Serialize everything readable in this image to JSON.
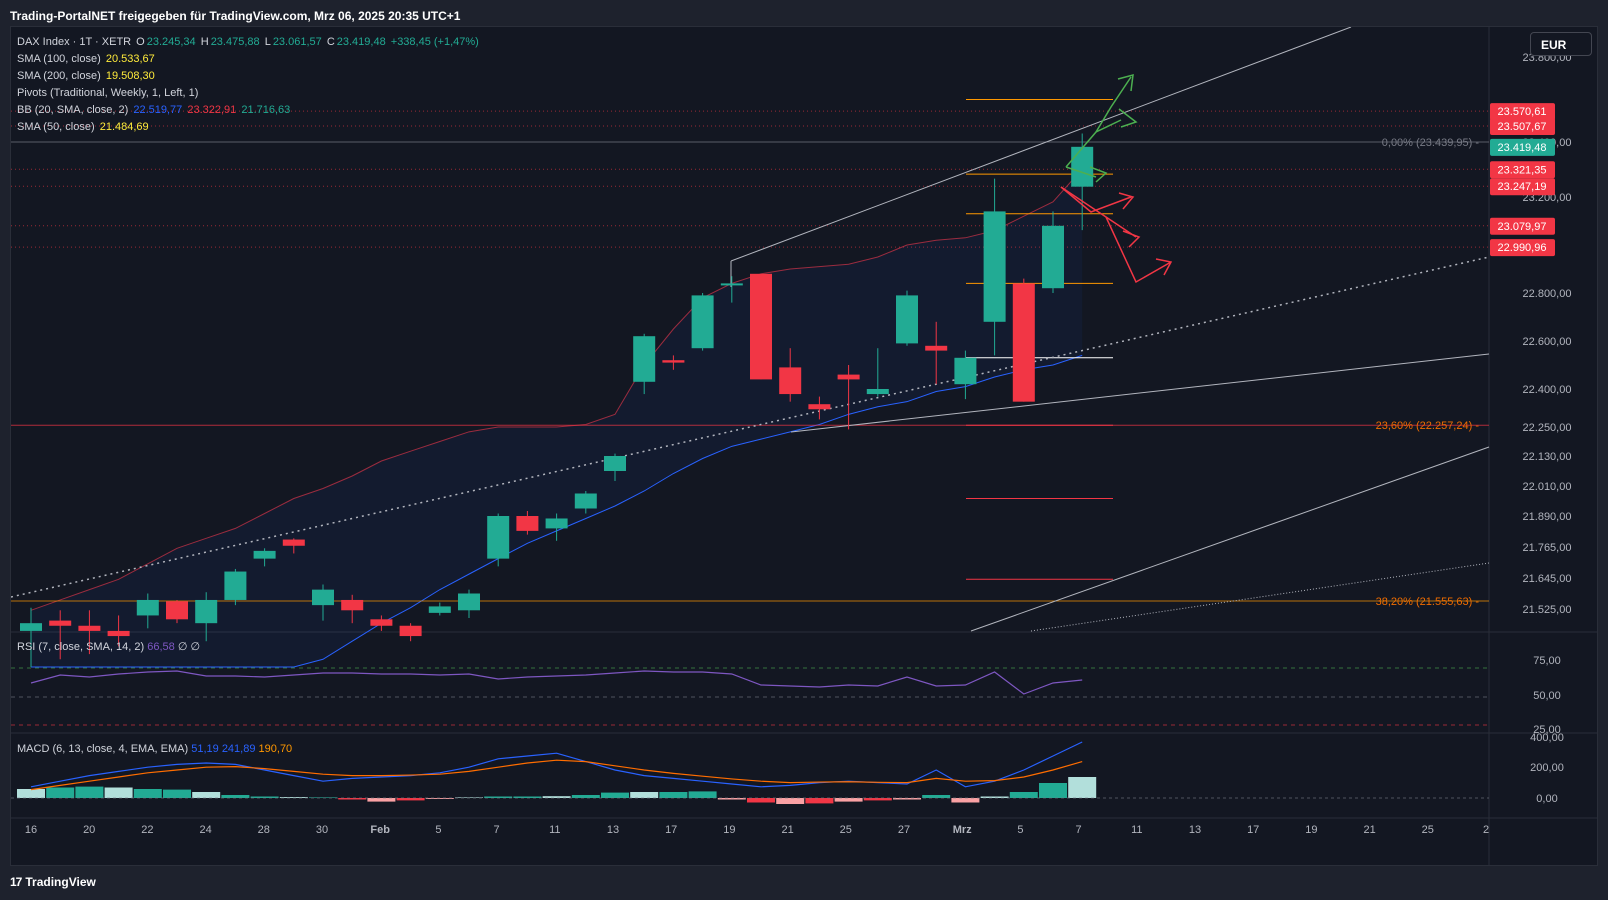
{
  "header": {
    "text": "Trading-PortalNET freigegeben für TradingView.com, Mrz 06, 2025 20:35 UTC+1"
  },
  "footer": {
    "logo": "17",
    "brand": "TradingView"
  },
  "currency_button": "EUR",
  "legend": {
    "symbol": "DAX Index · 1T · XETR",
    "o_label": "O",
    "o": "23.245,34",
    "h_label": "H",
    "h": "23.475,88",
    "l_label": "L",
    "l": "23.061,57",
    "c_label": "C",
    "c": "23.419,48",
    "chg": "+338,45 (+1,47%)",
    "sma100_label": "SMA (100, close)",
    "sma100": "20.533,67",
    "sma200_label": "SMA (200, close)",
    "sma200": "19.508,30",
    "pivots_label": "Pivots (Traditional, Weekly, 1, Left, 1)",
    "bb_label": "BB (20, SMA, close, 2)",
    "bb_basis": "22.519,77",
    "bb_upper": "23.322,91",
    "bb_lower": "21.716,63",
    "sma50_label": "SMA (50, close)",
    "sma50": "21.484,69"
  },
  "rsi_legend": {
    "label": "RSI (7, close, SMA, 14, 2)",
    "value": "66,58",
    "extra": "∅ ∅"
  },
  "macd_legend": {
    "label": "MACD (6, 13, close, 4, EMA, EMA)",
    "macd": "51,19",
    "signal": "241,89",
    "hist": "190,70"
  },
  "colors": {
    "up": "#22ab94",
    "down": "#f23645",
    "bg": "#131722",
    "grid": "#1e222d",
    "bb": "#9b2c3f",
    "sma50": "#2962ff",
    "macd": "#2962ff",
    "signal": "#ff6d00",
    "rsi": "#7e57c2",
    "pivot": "#ff9800",
    "fib": "#ef6c00"
  },
  "chart_data": {
    "type": "candlestick",
    "y_ticks": [
      "23.800,00",
      "23.400,00",
      "23.200,00",
      "22.800,00",
      "22.600,00",
      "22.400,00",
      "22.250,00",
      "22.130,00",
      "22.010,00",
      "21.890,00",
      "21.765,00",
      "21.645,00",
      "21.525,00"
    ],
    "x_ticks": [
      "16",
      "20",
      "22",
      "24",
      "28",
      "30",
      "Feb",
      "5",
      "7",
      "11",
      "13",
      "17",
      "19",
      "21",
      "25",
      "27",
      "Mrz",
      "5",
      "7",
      "11",
      "13",
      "17",
      "19",
      "21",
      "25",
      "2"
    ],
    "candles": [
      {
        "o": 21440,
        "h": 21530,
        "l": 21300,
        "c": 21470
      },
      {
        "o": 21480,
        "h": 21520,
        "l": 21330,
        "c": 21460
      },
      {
        "o": 21460,
        "h": 21520,
        "l": 21350,
        "c": 21440
      },
      {
        "o": 21440,
        "h": 21500,
        "l": 21380,
        "c": 21420
      },
      {
        "o": 21500,
        "h": 21585,
        "l": 21450,
        "c": 21560
      },
      {
        "o": 21555,
        "h": 21560,
        "l": 21470,
        "c": 21485
      },
      {
        "o": 21470,
        "h": 21590,
        "l": 21400,
        "c": 21560
      },
      {
        "o": 21560,
        "h": 21680,
        "l": 21540,
        "c": 21670
      },
      {
        "o": 21720,
        "h": 21760,
        "l": 21690,
        "c": 21750
      },
      {
        "o": 21795,
        "h": 21800,
        "l": 21740,
        "c": 21770
      },
      {
        "o": 21540,
        "h": 21620,
        "l": 21480,
        "c": 21600
      },
      {
        "o": 21560,
        "h": 21580,
        "l": 21470,
        "c": 21520
      },
      {
        "o": 21485,
        "h": 21500,
        "l": 21440,
        "c": 21460
      },
      {
        "o": 21460,
        "h": 21470,
        "l": 21400,
        "c": 21420
      },
      {
        "o": 21510,
        "h": 21550,
        "l": 21500,
        "c": 21535
      },
      {
        "o": 21520,
        "h": 21600,
        "l": 21490,
        "c": 21585
      },
      {
        "o": 21720,
        "h": 21900,
        "l": 21690,
        "c": 21890
      },
      {
        "o": 21890,
        "h": 21910,
        "l": 21815,
        "c": 21830
      },
      {
        "o": 21840,
        "h": 21900,
        "l": 21790,
        "c": 21880
      },
      {
        "o": 21920,
        "h": 21990,
        "l": 21900,
        "c": 21980
      },
      {
        "o": 22070,
        "h": 22140,
        "l": 22030,
        "c": 22130
      },
      {
        "o": 22430,
        "h": 22630,
        "l": 22380,
        "c": 22620
      },
      {
        "o": 22520,
        "h": 22540,
        "l": 22480,
        "c": 22510
      },
      {
        "o": 22570,
        "h": 22800,
        "l": 22560,
        "c": 22790
      },
      {
        "o": 22840,
        "h": 22870,
        "l": 22760,
        "c": 22840
      },
      {
        "o": 22880,
        "h": 22880,
        "l": 22440,
        "c": 22440
      },
      {
        "o": 22490,
        "h": 22570,
        "l": 22350,
        "c": 22380
      },
      {
        "o": 22340,
        "h": 22370,
        "l": 22280,
        "c": 22320
      },
      {
        "o": 22460,
        "h": 22500,
        "l": 22240,
        "c": 22440
      },
      {
        "o": 22380,
        "h": 22570,
        "l": 22370,
        "c": 22400
      },
      {
        "o": 22590,
        "h": 22810,
        "l": 22580,
        "c": 22790
      },
      {
        "o": 22580,
        "h": 22680,
        "l": 22420,
        "c": 22560
      },
      {
        "o": 22420,
        "h": 22560,
        "l": 22360,
        "c": 22530
      },
      {
        "o": 22680,
        "h": 23280,
        "l": 22540,
        "c": 23140
      },
      {
        "o": 22840,
        "h": 22860,
        "l": 22350,
        "c": 22350
      },
      {
        "o": 22820,
        "h": 23140,
        "l": 22800,
        "c": 23080
      },
      {
        "o": 23245,
        "h": 23476,
        "l": 23062,
        "c": 23419
      }
    ],
    "fib_levels": [
      {
        "label": "0,00% (23.439,95)",
        "value": 23440
      },
      {
        "label": "23,60% (22.257,24)",
        "value": 22257
      },
      {
        "label": "38,20% (21.555,63)",
        "value": 21556
      }
    ],
    "price_badges": [
      {
        "text": "23.570,61",
        "value": 23571,
        "kind": "down"
      },
      {
        "text": "23.507,67",
        "value": 23508,
        "kind": "down"
      },
      {
        "text": "23.419,48",
        "value": 23419,
        "kind": "up"
      },
      {
        "text": "23.321,35",
        "value": 23321,
        "kind": "down"
      },
      {
        "text": "23.247,19",
        "value": 23247,
        "kind": "down"
      },
      {
        "text": "23.079,97",
        "value": 23080,
        "kind": "down"
      },
      {
        "text": "22.990,96",
        "value": 22991,
        "kind": "down"
      }
    ],
    "rsi_ticks": [
      "75,00",
      "50,00",
      "25,00"
    ],
    "macd_ticks": [
      "400,00",
      "200,00",
      "0,00"
    ]
  }
}
